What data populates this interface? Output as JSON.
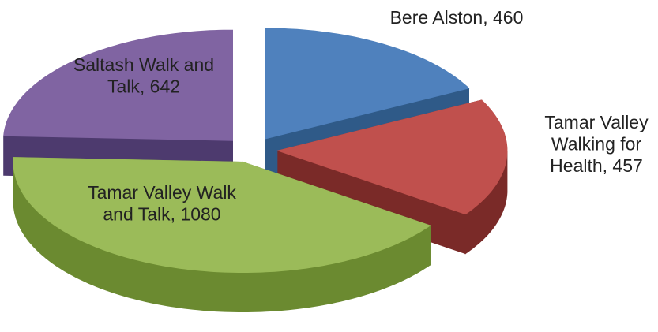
{
  "chart_data": {
    "type": "pie",
    "values": [
      460,
      457,
      1080,
      642
    ],
    "value_labels": [
      "Bere Alston, 460",
      "Tamar Valley Walking for Health, 457",
      "Tamar Valley Walk and Talk, 1080",
      "Saltash Walk and Talk, 642"
    ],
    "colors": [
      "#4f81bd",
      "#c0504d",
      "#9bbb59",
      "#8064a2"
    ],
    "side_colors": [
      "#2f5a88",
      "#7a2a28",
      "#6b8a30",
      "#4d3a6e"
    ]
  }
}
